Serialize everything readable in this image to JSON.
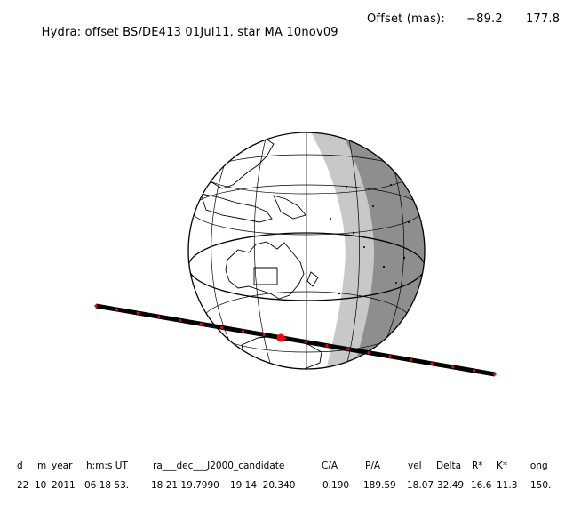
{
  "title": {
    "text": "Hydra: offset BS/DE413 01Jul11, star MA 10nov09",
    "offset_label": "Offset (mas):",
    "offset_x": "−89.2",
    "offset_y": "177.8"
  },
  "table": {
    "headers": [
      "d",
      "m",
      "year",
      "h:m:s UT",
      "ra___dec___J2000_candidate",
      "C/A",
      "P/A",
      "vel",
      "Delta",
      "R*",
      "K*",
      "long"
    ],
    "values": [
      "22",
      "10",
      "2011",
      "06 18 53.",
      "18 21 19.7990 −19 14  20.340",
      "0.190",
      "189.59",
      "18.07",
      "32.49",
      "16.6",
      "11.3",
      "150."
    ]
  },
  "colors": {
    "background": "#ffffff",
    "penumbra": "#c8c8c8",
    "umbra": "#8e8e8e",
    "track": "#000000",
    "track_dots": "#ff0000",
    "center_dot": "#ff0000"
  }
}
